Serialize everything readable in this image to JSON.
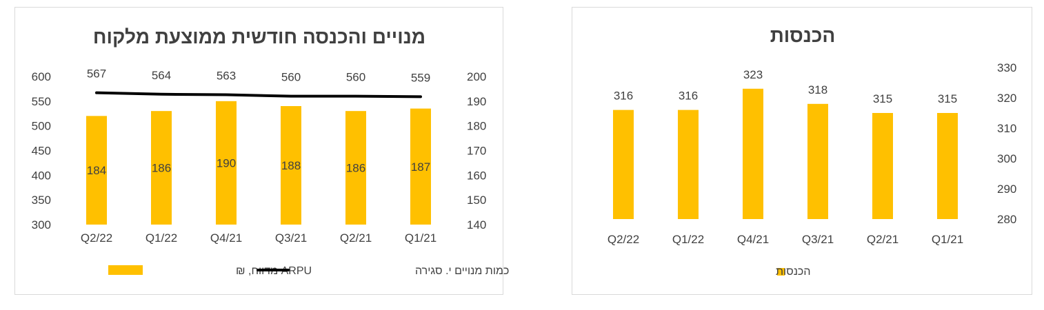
{
  "colors": {
    "bar": "#FFC000",
    "line": "#000000",
    "text": "#404040",
    "border": "#d9d9d9"
  },
  "chart_data": [
    {
      "type": "bar",
      "title": "מנויים והכנסה חודשית ממוצעת מלקוח",
      "categories": [
        "Q2/22",
        "Q1/22",
        "Q4/21",
        "Q3/21",
        "Q2/21",
        "Q1/21"
      ],
      "series": [
        {
          "name": "ARPU מדווח, ₪",
          "type": "bar",
          "axis": "right",
          "values": [
            184,
            186,
            190,
            188,
            186,
            187
          ]
        },
        {
          "name": "כמות מנויים י. סגירה",
          "type": "line",
          "axis": "left",
          "values": [
            567,
            564,
            563,
            560,
            560,
            559
          ]
        }
      ],
      "left_axis": {
        "ylim": [
          300,
          600
        ],
        "ticks": [
          600,
          550,
          500,
          450,
          400,
          350,
          300
        ]
      },
      "right_axis": {
        "ylim": [
          140,
          200
        ],
        "ticks": [
          200,
          190,
          180,
          170,
          160,
          150,
          140
        ]
      },
      "legend_position": "bottom",
      "grid": false
    },
    {
      "type": "bar",
      "title": "הכנסות",
      "categories": [
        "Q2/22",
        "Q1/22",
        "Q4/21",
        "Q3/21",
        "Q2/21",
        "Q1/21"
      ],
      "series": [
        {
          "name": "הכנסות",
          "values": [
            316,
            316,
            323,
            318,
            315,
            315
          ]
        }
      ],
      "right_axis": {
        "ylim": [
          280,
          330
        ],
        "ticks": [
          330,
          320,
          310,
          300,
          290,
          280
        ]
      },
      "legend_position": "bottom",
      "grid": false
    }
  ]
}
